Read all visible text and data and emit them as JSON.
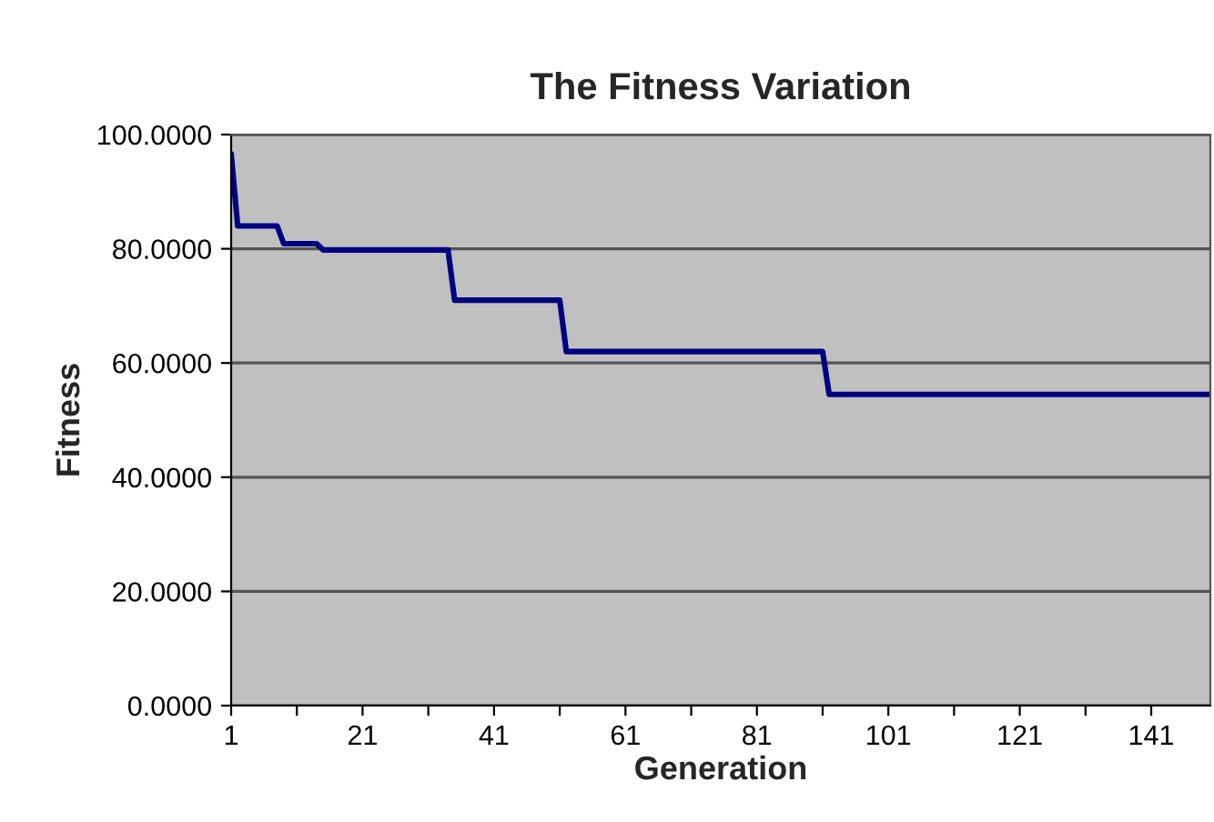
{
  "chart_data": {
    "type": "line",
    "title": "The Fitness Variation",
    "xlabel": "Generation",
    "ylabel": "Fitness",
    "series": [
      {
        "color": "#000080",
        "x": [
          1,
          2,
          8,
          9,
          14,
          15,
          34,
          35,
          51,
          52,
          91,
          92,
          150
        ],
        "values": [
          96.6,
          84.0,
          84.0,
          80.9,
          80.9,
          79.8,
          79.8,
          71.0,
          71.0,
          62.0,
          62.0,
          54.5,
          54.5
        ]
      }
    ],
    "xlim": [
      1,
      150
    ],
    "xticks": [
      1,
      {
        "value": 11,
        "label": null
      },
      21,
      {
        "value": 31,
        "label": null
      },
      41,
      {
        "value": 51,
        "label": null
      },
      61,
      {
        "value": 71,
        "label": null
      },
      81,
      {
        "value": 91,
        "label": null
      },
      101,
      {
        "value": 111,
        "label": null
      },
      121,
      {
        "value": 131,
        "label": null
      },
      141
    ],
    "ylim": [
      0,
      100
    ],
    "yticks": [
      {
        "value": 0,
        "label": "0.0000"
      },
      {
        "value": 20,
        "label": "20.0000"
      },
      {
        "value": 40,
        "label": "40.0000"
      },
      {
        "value": 60,
        "label": "60.0000"
      },
      {
        "value": 80,
        "label": "80.0000"
      },
      {
        "value": 100,
        "label": "100.0000"
      }
    ],
    "grid": "y",
    "legend": false,
    "marker": "none",
    "line_style": "solid"
  }
}
